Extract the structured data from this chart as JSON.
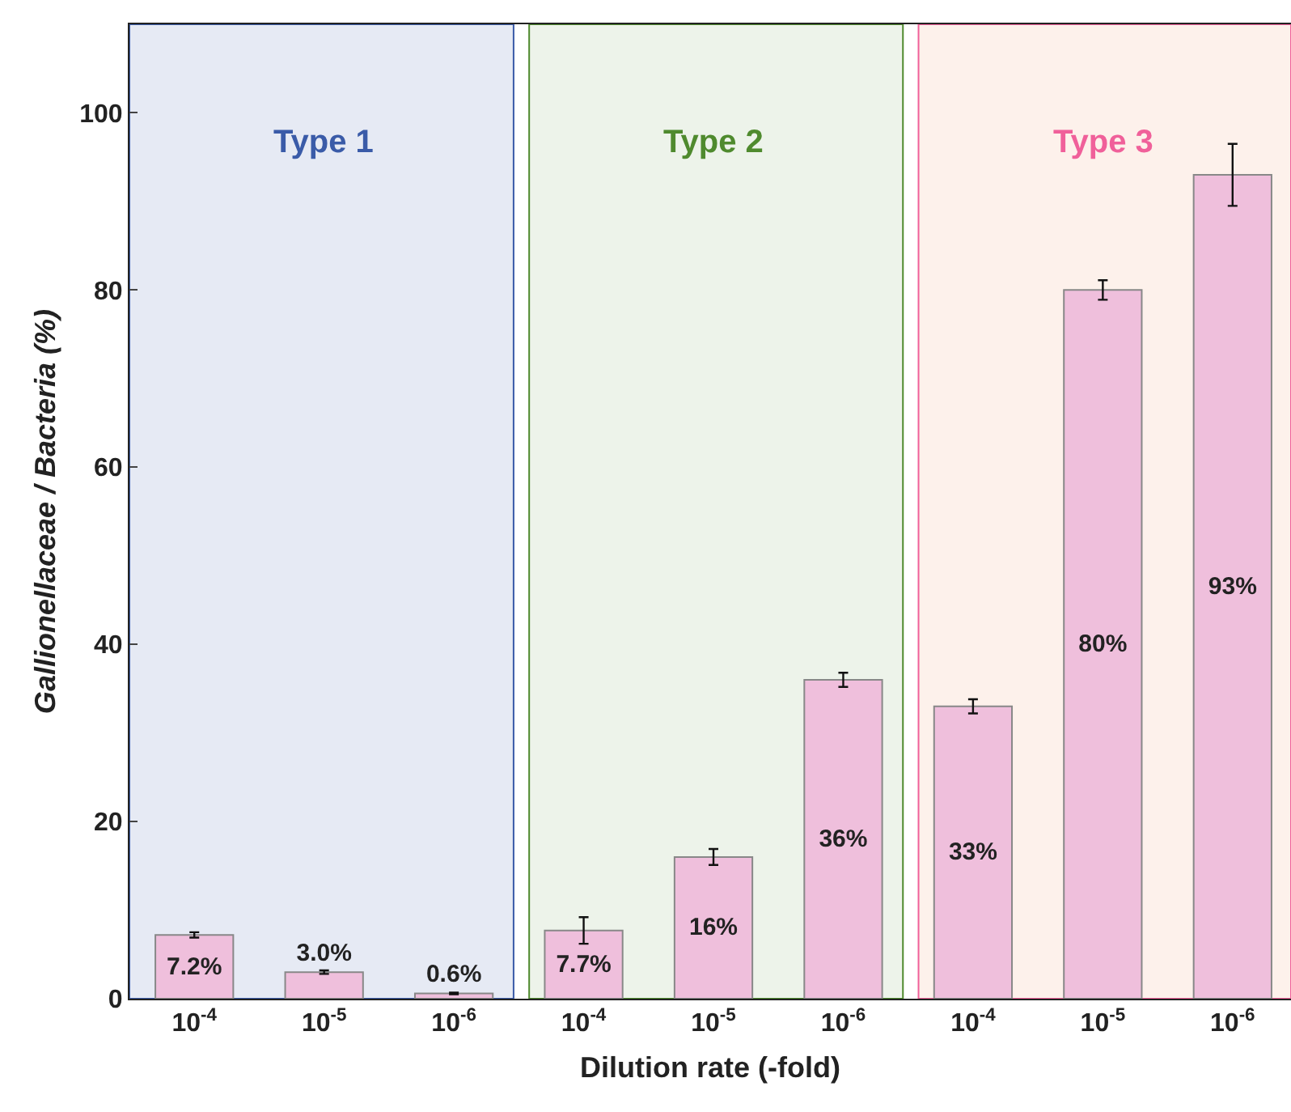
{
  "chart_data": {
    "type": "bar",
    "xlabel": "Dilution rate (-fold)",
    "ylabel": "Gallionellaceae / Bacteria (%)",
    "categories": [
      "10$^{-4}$",
      "10$^{-5}$",
      "10$^{-6}$",
      "10$^{-4}$",
      "10$^{-5}$",
      "10$^{-6}$",
      "10$^{-4}$",
      "10$^{-5}$",
      "10$^{-6}$"
    ],
    "values": [
      7.2,
      3.0,
      0.6,
      7.7,
      16,
      36,
      33,
      80,
      93
    ],
    "value_labels": [
      "7.2%",
      "3.0%",
      "0.6%",
      "7.7%",
      "16%",
      "36%",
      "33%",
      "80%",
      "93%"
    ],
    "errors": [
      0.3,
      0.2,
      0.1,
      1.5,
      0.9,
      0.8,
      0.8,
      1.1,
      3.5
    ],
    "color": "#efbfdc",
    "ylim": [
      0,
      110
    ],
    "yticks": [
      0,
      20,
      40,
      60,
      80,
      100
    ],
    "annotations": [
      "Type 1",
      "Type 2",
      "Type 3"
    ],
    "grid": false
  }
}
